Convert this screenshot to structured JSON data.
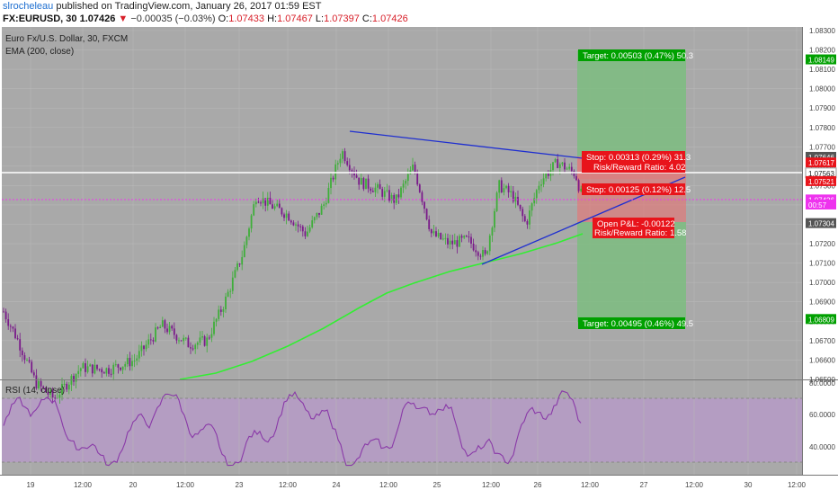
{
  "header": {
    "author": "slrocheleau",
    "published_text": "published on TradingView.com, January 26, 2017 01:59 EST",
    "symbol": "FX:EURUSD, 30",
    "last": "1.07426",
    "change_arrow": "▼",
    "change": "−0.00035 (−0.03%)",
    "ohlc": [
      {
        "label": "O:",
        "value": "1.07433"
      },
      {
        "label": "H:",
        "value": "1.07467"
      },
      {
        "label": "L:",
        "value": "1.07397"
      },
      {
        "label": "C:",
        "value": "1.07426"
      }
    ]
  },
  "main_pane": {
    "title": "Euro Fx/U.S. Dollar, 30, FXCM",
    "indicator": "EMA (200, close)"
  },
  "rsi_pane": {
    "title": "RSI (14, close)"
  },
  "price_axis": {
    "ticks": [
      "1.08300",
      "1.08200",
      "1.08100",
      "1.08000",
      "1.07900",
      "1.07800",
      "1.07700",
      "1.07600",
      "1.07500",
      "1.07400",
      "1.07300",
      "1.07200",
      "1.07100",
      "1.07000",
      "1.06900",
      "1.06800",
      "1.06700",
      "1.06600",
      "1.06500"
    ],
    "badges": [
      {
        "text": "1.08149",
        "price": 1.08149,
        "color": "#00a000"
      },
      {
        "text": "1.07646",
        "price": 1.07646,
        "color": "#555555"
      },
      {
        "text": "1.07617",
        "price": 1.07617,
        "color": "#e8141b"
      },
      {
        "text": "1.07563",
        "price": 1.07563,
        "color": "#ffffff"
      },
      {
        "text": "1.07521",
        "price": 1.07521,
        "color": "#e8141b"
      },
      {
        "text": "1.07426",
        "price": 1.07426,
        "color": "#ee33ee"
      },
      {
        "text": "00:57",
        "price": 1.074,
        "color": "#ee33ee"
      },
      {
        "text": "1.07304",
        "price": 1.07304,
        "color": "#555555"
      },
      {
        "text": "1.06809",
        "price": 1.06809,
        "color": "#00a000"
      }
    ]
  },
  "rsi_axis": {
    "ticks": [
      "80.0000",
      "60.0000",
      "40.0000"
    ]
  },
  "time_axis": {
    "labels": [
      "19",
      "12:00",
      "20",
      "12:00",
      "23",
      "12:00",
      "24",
      "12:00",
      "25",
      "12:00",
      "26",
      "12:00",
      "27",
      "12:00",
      "30",
      "12:00"
    ]
  },
  "position_tool": {
    "target_top": "Target: 0.00503 (0.47%) 50.3",
    "stop_top": "Stop: 0.00313 (0.29%) 31.3",
    "rr_top": "Risk/Reward Ratio: 4.02",
    "stop_mid": "Stop: 0.00125 (0.12%) 12.5",
    "open_pl": "Open P&L: -0.00122",
    "rr_bottom": "Risk/Reward Ratio: 1.58",
    "target_bottom": "Target: 0.00495 (0.46%) 49.5"
  },
  "colors": {
    "chart_bg": "#a9a9a9",
    "up_candle": "#3fae3a",
    "down_candle": "#7a1a8a",
    "ema": "#33ee33",
    "trendline": "#1f2fd0",
    "position_green": "#7dbd80",
    "position_red": "#e07a7a",
    "rsi_line": "#8a3aa8",
    "rsi_band": "#b69bc7"
  }
}
